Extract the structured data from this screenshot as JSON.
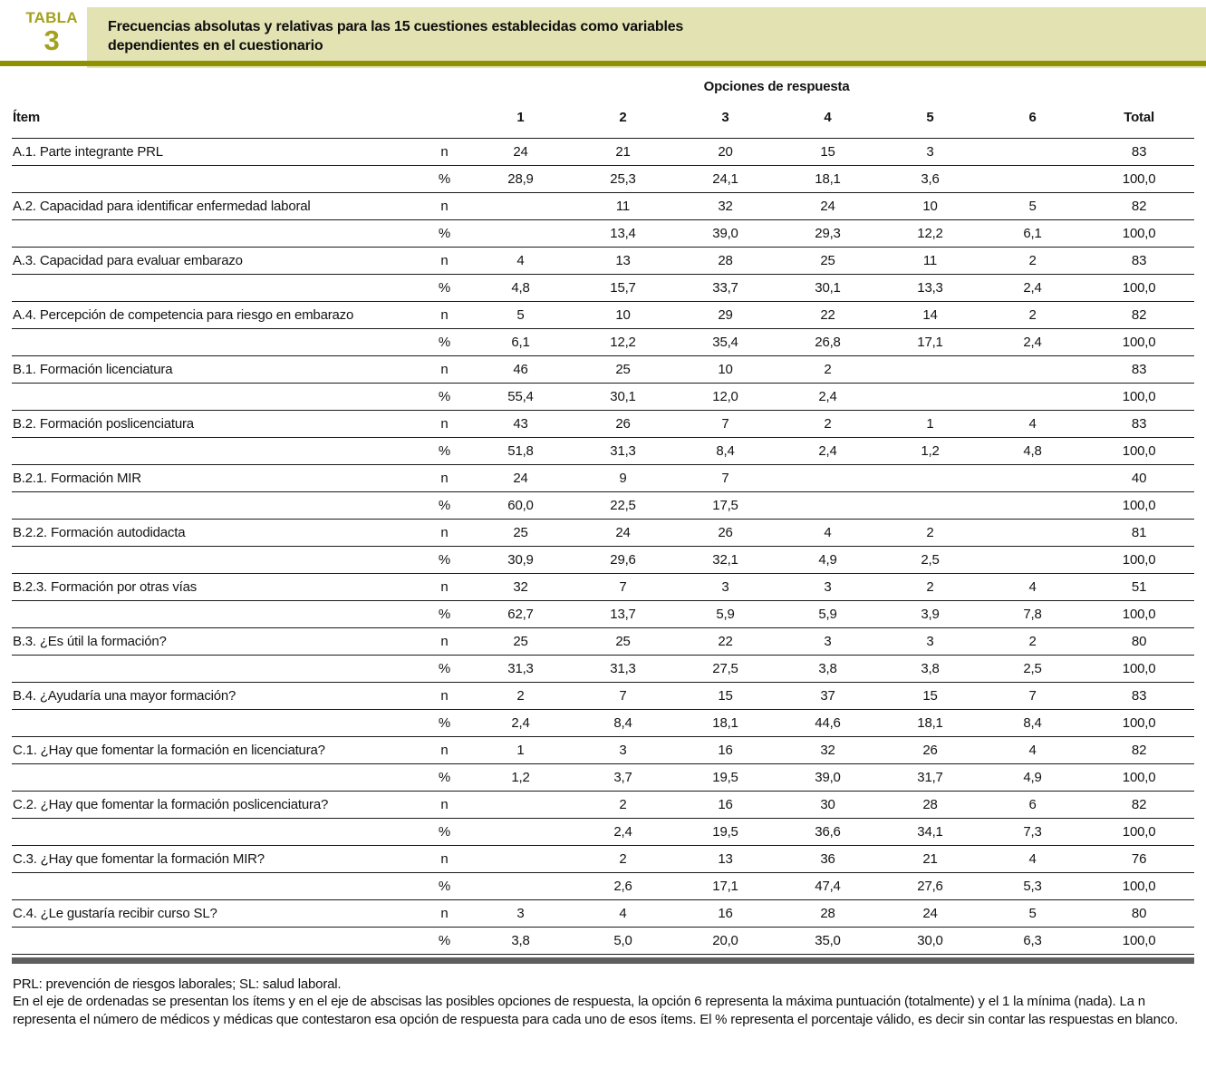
{
  "colors": {
    "accent_olive": "#a3a11d",
    "rule_olive": "#8f9200",
    "title_background": "#e2e2b2",
    "bottom_bar_gray": "#5e5e5e"
  },
  "badge": {
    "label": "TABLA",
    "number": "3"
  },
  "title_lines": [
    "Frecuencias absolutas y relativas para las 15 cuestiones establecidas como variables",
    "dependientes en el cuestionario"
  ],
  "table": {
    "group_header": "Opciones de respuesta",
    "col_item": "Ítem",
    "option_cols": [
      "1",
      "2",
      "3",
      "4",
      "5",
      "6"
    ],
    "col_total": "Total",
    "row_kinds": [
      "n",
      "%"
    ],
    "items": [
      {
        "label": "A.1. Parte integrante PRL",
        "n": [
          "24",
          "21",
          "20",
          "15",
          "3",
          "",
          "83"
        ],
        "pct": [
          "28,9",
          "25,3",
          "24,1",
          "18,1",
          "3,6",
          "",
          "100,0"
        ]
      },
      {
        "label": "A.2. Capacidad para identificar enfermedad laboral",
        "n": [
          "",
          "11",
          "32",
          "24",
          "10",
          "5",
          "82"
        ],
        "pct": [
          "",
          "13,4",
          "39,0",
          "29,3",
          "12,2",
          "6,1",
          "100,0"
        ]
      },
      {
        "label": "A.3. Capacidad para evaluar embarazo",
        "n": [
          "4",
          "13",
          "28",
          "25",
          "11",
          "2",
          "83"
        ],
        "pct": [
          "4,8",
          "15,7",
          "33,7",
          "30,1",
          "13,3",
          "2,4",
          "100,0"
        ]
      },
      {
        "label": "A.4. Percepción de competencia para riesgo en embarazo",
        "n": [
          "5",
          "10",
          "29",
          "22",
          "14",
          "2",
          "82"
        ],
        "pct": [
          "6,1",
          "12,2",
          "35,4",
          "26,8",
          "17,1",
          "2,4",
          "100,0"
        ]
      },
      {
        "label": "B.1. Formación licenciatura",
        "n": [
          "46",
          "25",
          "10",
          "2",
          "",
          "",
          "83"
        ],
        "pct": [
          "55,4",
          "30,1",
          "12,0",
          "2,4",
          "",
          "",
          "100,0"
        ]
      },
      {
        "label": "B.2. Formación poslicenciatura",
        "n": [
          "43",
          "26",
          "7",
          "2",
          "1",
          "4",
          "83"
        ],
        "pct": [
          "51,8",
          "31,3",
          "8,4",
          "2,4",
          "1,2",
          "4,8",
          "100,0"
        ]
      },
      {
        "label": "B.2.1. Formación MIR",
        "n": [
          "24",
          "9",
          "7",
          "",
          "",
          "",
          "40"
        ],
        "pct": [
          "60,0",
          "22,5",
          "17,5",
          "",
          "",
          "",
          "100,0"
        ]
      },
      {
        "label": "B.2.2. Formación autodidacta",
        "n": [
          "25",
          "24",
          "26",
          "4",
          "2",
          "",
          "81"
        ],
        "pct": [
          "30,9",
          "29,6",
          "32,1",
          "4,9",
          "2,5",
          "",
          "100,0"
        ]
      },
      {
        "label": "B.2.3. Formación por otras vías",
        "n": [
          "32",
          "7",
          "3",
          "3",
          "2",
          "4",
          "51"
        ],
        "pct": [
          "62,7",
          "13,7",
          "5,9",
          "5,9",
          "3,9",
          "7,8",
          "100,0"
        ]
      },
      {
        "label": "B.3. ¿Es útil la formación?",
        "n": [
          "25",
          "25",
          "22",
          "3",
          "3",
          "2",
          "80"
        ],
        "pct": [
          "31,3",
          "31,3",
          "27,5",
          "3,8",
          "3,8",
          "2,5",
          "100,0"
        ]
      },
      {
        "label": "B.4. ¿Ayudaría una mayor formación?",
        "n": [
          "2",
          "7",
          "15",
          "37",
          "15",
          "7",
          "83"
        ],
        "pct": [
          "2,4",
          "8,4",
          "18,1",
          "44,6",
          "18,1",
          "8,4",
          "100,0"
        ]
      },
      {
        "label": "C.1. ¿Hay que fomentar la formación en licenciatura?",
        "n": [
          "1",
          "3",
          "16",
          "32",
          "26",
          "4",
          "82"
        ],
        "pct": [
          "1,2",
          "3,7",
          "19,5",
          "39,0",
          "31,7",
          "4,9",
          "100,0"
        ]
      },
      {
        "label": "C.2. ¿Hay que fomentar la formación poslicenciatura?",
        "n": [
          "",
          "2",
          "16",
          "30",
          "28",
          "6",
          "82"
        ],
        "pct": [
          "",
          "2,4",
          "19,5",
          "36,6",
          "34,1",
          "7,3",
          "100,0"
        ]
      },
      {
        "label": "C.3. ¿Hay que fomentar la formación MIR?",
        "n": [
          "",
          "2",
          "13",
          "36",
          "21",
          "4",
          "76"
        ],
        "pct": [
          "",
          "2,6",
          "17,1",
          "47,4",
          "27,6",
          "5,3",
          "100,0"
        ]
      },
      {
        "label": "C.4. ¿Le gustaría recibir curso SL?",
        "n": [
          "3",
          "4",
          "16",
          "28",
          "24",
          "5",
          "80"
        ],
        "pct": [
          "3,8",
          "5,0",
          "20,0",
          "35,0",
          "30,0",
          "6,3",
          "100,0"
        ]
      }
    ]
  },
  "footnotes": [
    "PRL: prevención de riesgos laborales; SL: salud laboral.",
    "En el eje de ordenadas se presentan los ítems y en el eje de abscisas las posibles opciones de respuesta, la opción 6 representa la máxima puntuación (totalmente) y el 1 la mínima (nada). La n representa el número de médicos y médicas que contestaron esa opción de respuesta para cada uno de esos ítems. El % representa el porcentaje válido, es decir sin contar las respuestas en blanco."
  ]
}
